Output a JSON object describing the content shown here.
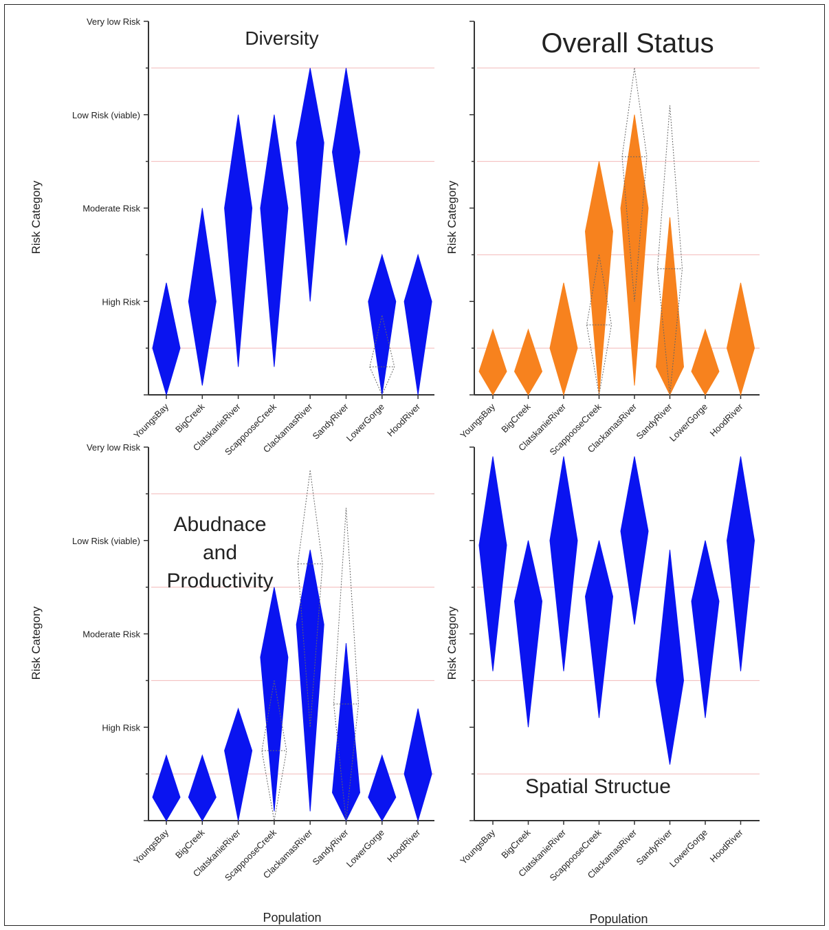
{
  "chart_data": [
    {
      "type": "violin",
      "title": "Diversity",
      "xlabel": "",
      "ylabel": "Risk Category",
      "y_tick_labels": [
        "Very low Risk",
        "Low Risk (viable)",
        "Moderate Risk",
        "High Risk"
      ],
      "y_tick_values": [
        4,
        3,
        2,
        1
      ],
      "ylim": [
        0,
        4
      ],
      "categories": [
        "YoungsBay",
        "BigCreek",
        "ClatskanieRiver",
        "ScappooseCreek",
        "ClackamasRiver",
        "SandyRiver",
        "LowerGorge",
        "HoodRiver"
      ],
      "fill_color": "#0a14f0",
      "violins": [
        [
          0,
          1.2,
          0.5
        ],
        [
          0.1,
          2.0,
          1.0
        ],
        [
          0.3,
          3.0,
          2.0
        ],
        [
          0.3,
          3.0,
          2.0
        ],
        [
          1.0,
          3.5,
          2.7
        ],
        [
          1.6,
          3.5,
          2.6
        ],
        [
          0,
          1.5,
          1.0
        ],
        [
          0,
          1.5,
          1.0
        ]
      ],
      "outline_violins": [
        null,
        null,
        null,
        null,
        null,
        null,
        [
          0,
          0.85,
          0.3
        ],
        null
      ],
      "gridlines": [
        0.5,
        2.5,
        3.5
      ]
    },
    {
      "type": "violin",
      "title": "Overall Status",
      "xlabel": "",
      "ylabel": "Risk Category",
      "y_tick_labels": [],
      "ylim": [
        0,
        4
      ],
      "categories": [
        "YoungsBay",
        "BigCreek",
        "ClatskanieRiver",
        "ScappooseCreek",
        "ClackamasRiver",
        "SandyRiver",
        "LowerGorge",
        "HoodRiver"
      ],
      "fill_color": "#f7821e",
      "violins": [
        [
          0,
          0.7,
          0.25
        ],
        [
          0,
          0.7,
          0.25
        ],
        [
          0,
          1.2,
          0.5
        ],
        [
          0,
          2.5,
          1.75
        ],
        [
          0.1,
          3.0,
          2.0
        ],
        [
          0,
          1.9,
          0.3
        ],
        [
          0,
          0.7,
          0.25
        ],
        [
          0,
          1.2,
          0.5
        ]
      ],
      "outline_violins": [
        null,
        null,
        null,
        [
          0,
          1.5,
          0.75
        ],
        [
          1.0,
          3.5,
          2.55
        ],
        [
          0,
          3.1,
          1.35
        ],
        null,
        null
      ],
      "gridlines": [
        0.5,
        1.5,
        2.5,
        3.5
      ]
    },
    {
      "type": "violin",
      "title": "Abudnace and Productivity",
      "xlabel": "Population",
      "ylabel": "Risk Category",
      "y_tick_labels": [
        "Very low Risk",
        "Low Risk (viable)",
        "Moderate Risk",
        "High Risk"
      ],
      "y_tick_values": [
        4,
        3,
        2,
        1
      ],
      "ylim": [
        0,
        4
      ],
      "categories": [
        "YoungsBay",
        "BigCreek",
        "ClatskanieRiver",
        "ScappooseCreek",
        "ClackamasRiver",
        "SandyRiver",
        "LowerGorge",
        "HoodRiver"
      ],
      "fill_color": "#0a14f0",
      "violins": [
        [
          0,
          0.7,
          0.25
        ],
        [
          0,
          0.7,
          0.25
        ],
        [
          0,
          1.2,
          0.75
        ],
        [
          0.1,
          2.5,
          1.75
        ],
        [
          0.1,
          2.9,
          2.1
        ],
        [
          0,
          1.9,
          0.3
        ],
        [
          0,
          0.7,
          0.25
        ],
        [
          0,
          1.2,
          0.5
        ]
      ],
      "outline_violins": [
        null,
        null,
        null,
        [
          0,
          1.5,
          0.75
        ],
        [
          1.0,
          3.75,
          2.75
        ],
        [
          0,
          3.35,
          1.25
        ],
        null,
        null
      ],
      "gridlines": [
        0.5,
        1.5,
        2.5,
        3.5
      ]
    },
    {
      "type": "violin",
      "title": "Spatial Structue",
      "xlabel": "Population",
      "ylabel": "Risk Category",
      "y_tick_labels": [],
      "ylim": [
        0,
        4
      ],
      "categories": [
        "YoungsBay",
        "BigCreek",
        "ClatskanieRiver",
        "ScappooseCreek",
        "ClackamasRiver",
        "SandyRiver",
        "LowerGorge",
        "HoodRiver"
      ],
      "fill_color": "#0a14f0",
      "violins": [
        [
          1.6,
          3.9,
          2.95
        ],
        [
          1.0,
          3.0,
          2.35
        ],
        [
          1.6,
          3.9,
          3.0
        ],
        [
          1.1,
          3.0,
          2.4
        ],
        [
          2.1,
          3.9,
          3.1
        ],
        [
          0.6,
          2.9,
          1.5
        ],
        [
          1.1,
          3.0,
          2.35
        ],
        [
          1.6,
          3.9,
          3.0
        ]
      ],
      "outline_violins": [
        null,
        null,
        null,
        null,
        null,
        null,
        null,
        null
      ],
      "gridlines": [
        0.5,
        1.5,
        2.5
      ]
    }
  ]
}
